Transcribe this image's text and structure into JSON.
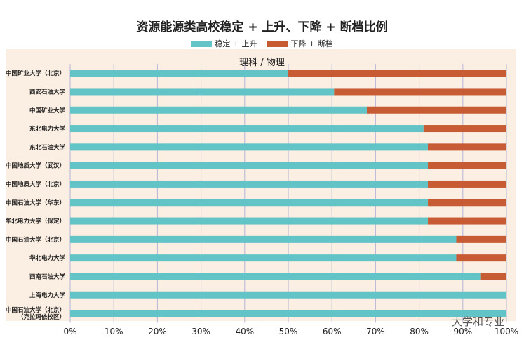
{
  "title": "资源能源类高校稳定 + 上升、下降 + 断档比例",
  "subtitle": "理科 / 物理",
  "watermark": "大学和专业",
  "colors": {
    "stable": "#62c4c6",
    "drop": "#c75b34"
  },
  "chart_data": {
    "type": "bar",
    "orientation": "horizontal",
    "stacked": true,
    "title": "资源能源类高校稳定 + 上升、下降 + 断档比例",
    "subtitle": "理科 / 物理",
    "legend_position": "top",
    "xlim": [
      0,
      100
    ],
    "x_ticks": [
      "0%",
      "10%",
      "20%",
      "30%",
      "40%",
      "50%",
      "60%",
      "70%",
      "80%",
      "90%",
      "100%"
    ],
    "categories": [
      "中国矿业大学（北京）",
      "西安石油大学",
      "中国矿业大学",
      "东北电力大学",
      "东北石油大学",
      "中国地质大学（武汉）",
      "中国地质大学（北京）",
      "中国石油大学（华东）",
      "华北电力大学（保定）",
      "中国石油大学（北京）",
      "华北电力大学",
      "西南石油大学",
      "上海电力大学",
      "中国石油大学（北京）（克拉玛依校区）"
    ],
    "series": [
      {
        "name": "稳定 + 上升",
        "values": [
          50,
          60.5,
          68,
          81,
          82,
          82,
          82,
          82,
          82,
          88.5,
          88.5,
          94,
          100,
          100
        ]
      },
      {
        "name": "下降 + 断档",
        "values": [
          50,
          39.5,
          32,
          19,
          18,
          18,
          18,
          18,
          18,
          11.5,
          11.5,
          6,
          0,
          0
        ]
      }
    ]
  }
}
